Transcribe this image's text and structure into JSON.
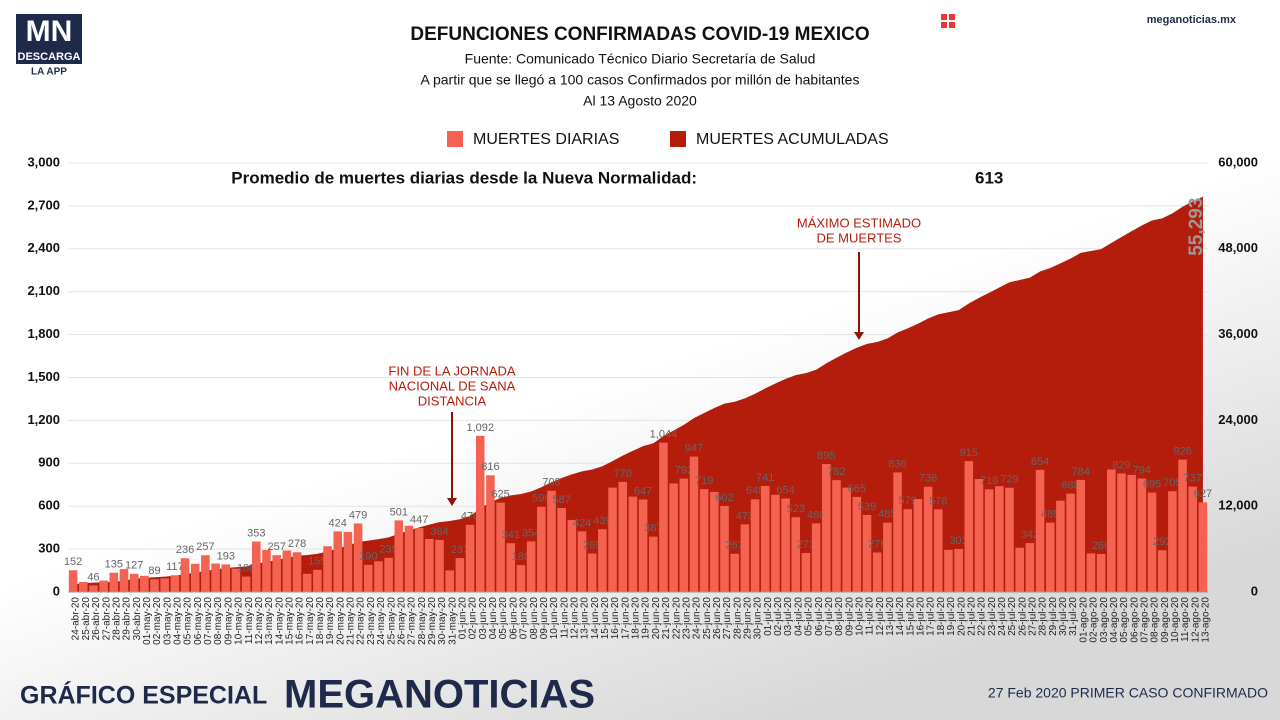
{
  "header": {
    "logo": "MN",
    "logo_sub": "DESCARGA",
    "logo_app": "LA APP",
    "site": "meganoticias.mx"
  },
  "footer": {
    "left": "GRÁFICO ESPECIAL",
    "brand": "MEGANOTICIAS",
    "right": "27 Feb 2020 PRIMER CASO CONFIRMADO"
  },
  "chart_data": {
    "type": "bar_area",
    "title": "DEFUNCIONES CONFIRMADAS COVID-19 MEXICO",
    "subtitle": [
      "Fuente: Comunicado Técnico Diario Secretaría de Salud",
      "A partir que se llegó a 100 casos Confirmados por millón de habitantes",
      "Al 13 Agosto 2020"
    ],
    "average_text": "Promedio de muertes diarias desde la Nueva Normalidad:",
    "average": 613,
    "annotations": [
      [
        "FIN DE LA JORNADA",
        "NACIONAL DE SANA",
        "DISTANCIA"
      ],
      [
        "MÁXIMO ESTIMADO",
        "DE MUERTES"
      ]
    ],
    "categories": [
      "24-abr-20",
      "25-abr-20",
      "26-abr-20",
      "27-abr-20",
      "28-abr-20",
      "29-abr-20",
      "30-abr-20",
      "01-may-20",
      "02-may-20",
      "03-may-20",
      "04-may-20",
      "05-may-20",
      "06-may-20",
      "07-may-20",
      "08-may-20",
      "09-may-20",
      "10-may-20",
      "11-may-20",
      "12-may-20",
      "13-may-20",
      "14-may-20",
      "15-may-20",
      "16-may-20",
      "17-may-20",
      "18-may-20",
      "19-may-20",
      "20-may-20",
      "21-may-20",
      "22-may-20",
      "23-may-20",
      "24-may-20",
      "25-may-20",
      "26-may-20",
      "27-may-20",
      "28-may-20",
      "29-may-20",
      "30-may-20",
      "31-may-20",
      "01-jun-20",
      "02-jun-20",
      "03-jun-20",
      "04-jun-20",
      "05-jun-20",
      "06-jun-20",
      "07-jun-20",
      "08-jun-20",
      "09-jun-20",
      "10-jun-20",
      "11-jun-20",
      "12-jun-20",
      "13-jun-20",
      "14-jun-20",
      "15-jun-20",
      "16-jun-20",
      "17-jun-20",
      "18-jun-20",
      "19-jun-20",
      "20-jun-20",
      "21-jun-20",
      "22-jun-20",
      "23-jun-20",
      "24-jun-20",
      "25-jun-20",
      "26-jun-20",
      "27-jun-20",
      "28-jun-20",
      "29-jun-20",
      "30-jun-20",
      "01-jul-20",
      "02-jul-20",
      "03-jul-20",
      "04-jul-20",
      "05-jul-20",
      "06-jul-20",
      "07-jul-20",
      "08-jul-20",
      "09-jul-20",
      "10-jul-20",
      "11-jul-20",
      "12-jul-20",
      "13-jul-20",
      "14-jul-20",
      "15-jul-20",
      "16-jul-20",
      "17-jul-20",
      "18-jul-20",
      "19-jul-20",
      "20-jul-20",
      "21-jul-20",
      "22-jul-20",
      "23-jul-20",
      "24-jul-20",
      "25-jul-20",
      "26-jul-20",
      "27-jul-20",
      "28-jul-20",
      "29-jul-20",
      "30-jul-20",
      "31-jul-20",
      "01-ago-20",
      "02-ago-20",
      "03-ago-20",
      "04-ago-20",
      "05-ago-20",
      "06-ago-20",
      "07-ago-20",
      "08-ago-20",
      "09-ago-20",
      "10-ago-20",
      "11-ago-20",
      "12-ago-20",
      "13-ago-20"
    ],
    "series": [
      {
        "name": "MUERTES DIARIAS",
        "color": "#f46352",
        "values": [
          152,
          70,
          46,
          80,
          135,
          160,
          127,
          113,
          89,
          95,
          117,
          236,
          197,
          257,
          199,
          193,
          163,
          108,
          353,
          294,
          257,
          290,
          278,
          127,
          155,
          320,
          424,
          420,
          479,
          190,
          215,
          239,
          501,
          463,
          447,
          371,
          364,
          151,
          237,
          470,
          1092,
          816,
          625,
          341,
          188,
          354,
          596,
          708,
          587,
          504,
          424,
          269,
          439,
          730,
          770,
          667,
          647,
          387,
          1044,
          759,
          793,
          947,
          719,
          700,
          602,
          267,
          473,
          648,
          741,
          680,
          654,
          523,
          273,
          480,
          895,
          782,
          730,
          665,
          539,
          276,
          485,
          836,
          579,
          650,
          736,
          578,
          295,
          301,
          915,
          790,
          718,
          740,
          729,
          310,
          342,
          854,
          485,
          639,
          688,
          784,
          270,
          266,
          857,
          829,
          819,
          794,
          695,
          292,
          705,
          926,
          737,
          627
        ],
        "value_labels": [
          "152",
          null,
          "46",
          null,
          "135",
          null,
          "127",
          null,
          "89",
          null,
          "117",
          "236",
          null,
          "257",
          null,
          "193",
          null,
          "108",
          "353",
          null,
          "257",
          null,
          "278",
          null,
          "155",
          null,
          "424",
          null,
          "479",
          "190",
          null,
          "239",
          "501",
          null,
          "447",
          null,
          "364",
          null,
          "237",
          "470",
          "1,092",
          "816",
          "625",
          "341",
          "188",
          "354",
          "596",
          "708",
          "587",
          null,
          "424",
          "269",
          "439",
          null,
          "770",
          null,
          "647",
          "387",
          "1,044",
          null,
          "793",
          "947",
          "719",
          null,
          "602",
          "267",
          "473",
          "648",
          "741",
          null,
          "654",
          "523",
          "273",
          "480",
          "895",
          "782",
          null,
          "665",
          "539",
          "276",
          "485",
          "836",
          "579",
          null,
          "736",
          "578",
          null,
          "301",
          "915",
          null,
          "718",
          null,
          "729",
          null,
          "342",
          "854",
          "485",
          null,
          "688",
          "784",
          null,
          "266",
          null,
          "829",
          null,
          "794",
          "695",
          "292",
          "705",
          "926",
          "737",
          "627"
        ]
      },
      {
        "name": "MUERTES ACUMULADAS",
        "color": "#b41c0b",
        "axis": "y2",
        "values": [
          1069,
          1221,
          1305,
          1351,
          1434,
          1569,
          1859,
          1972,
          2061,
          2154,
          2271,
          2507,
          2704,
          2961,
          3160,
          3353,
          3465,
          3573,
          3926,
          4220,
          4477,
          4767,
          5045,
          5177,
          5332,
          5666,
          6090,
          6510,
          6989,
          7179,
          7394,
          7633,
          8134,
          8597,
          9044,
          9415,
          9779,
          9930,
          10167,
          10637,
          11729,
          12545,
          13170,
          13511,
          13699,
          14053,
          14649,
          15357,
          15944,
          16448,
          16872,
          17141,
          17580,
          18310,
          19080,
          19747,
          20394,
          20781,
          21825,
          22584,
          23377,
          24324,
          25043,
          25743,
          26345,
          26612,
          27085,
          27733,
          28474,
          29154,
          29808,
          30331,
          30604,
          31084,
          31979,
          32761,
          33491,
          34156,
          34695,
          34971,
          35456,
          36292,
          36871,
          37521,
          38257,
          38835,
          39130,
          39431,
          40346,
          41136,
          41854,
          42594,
          43323,
          43633,
          43975,
          44829,
          45314,
          45953,
          46641,
          47425,
          47695,
          47961,
          48818,
          49647,
          50466,
          51260,
          51955,
          52247,
          52952,
          53878,
          54615,
          55293
        ],
        "last_label": "55,293"
      }
    ],
    "ylim": [
      0,
      3000
    ],
    "yticks": [
      0,
      300,
      600,
      900,
      {
        "value": 1200,
        "label": "1,200"
      },
      {
        "value": 1500,
        "label": "1,500"
      },
      {
        "value": 1800,
        "label": "1,800"
      },
      {
        "value": 2100,
        "label": "2,100"
      },
      {
        "value": 2400,
        "label": "2,400"
      },
      {
        "value": 2700,
        "label": "2,700"
      },
      {
        "value": 3000,
        "label": "3,000"
      }
    ],
    "y2lim": [
      0,
      60000
    ],
    "y2ticks": [
      0,
      {
        "value": 12000,
        "label": "12,000"
      },
      {
        "value": 24000,
        "label": "24,000"
      },
      {
        "value": 36000,
        "label": "36,000"
      },
      {
        "value": 48000,
        "label": "48,000"
      },
      {
        "value": 60000,
        "label": "60,000"
      }
    ],
    "grid": true
  }
}
